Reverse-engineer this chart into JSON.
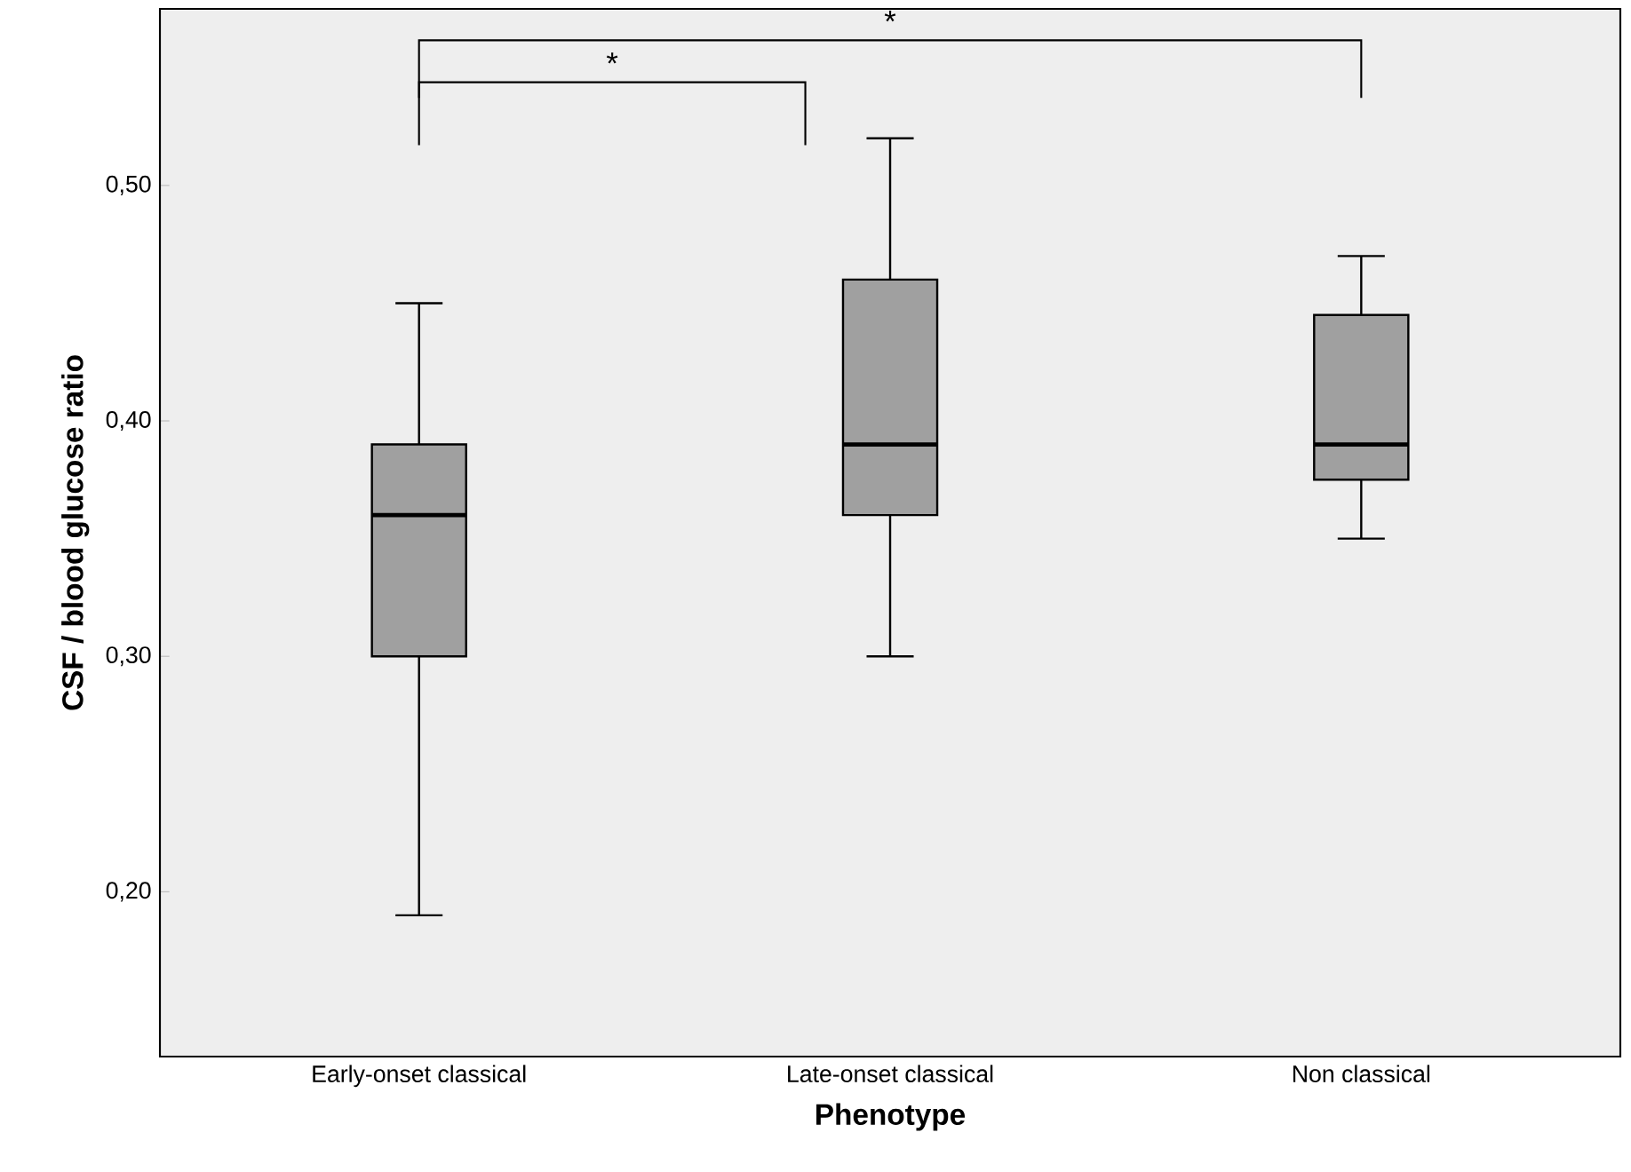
{
  "chart_data": {
    "type": "box",
    "xlabel": "Phenotype",
    "ylabel": "CSF / blood glucose ratio",
    "categories": [
      "Early-onset classical",
      "Late-onset classical",
      "Non classical"
    ],
    "color": "#a0a0a0",
    "boxes": [
      {
        "low": 0.19,
        "q1": 0.3,
        "median": 0.36,
        "q3": 0.39,
        "high": 0.45
      },
      {
        "low": 0.3,
        "q1": 0.36,
        "median": 0.39,
        "q3": 0.46,
        "high": 0.52
      },
      {
        "low": 0.35,
        "q1": 0.375,
        "median": 0.39,
        "q3": 0.445,
        "high": 0.47
      }
    ],
    "ylim": [
      0.13,
      0.575
    ],
    "yticks": [
      {
        "value": 0.2,
        "label": "0,20"
      },
      {
        "value": 0.3,
        "label": "0,30"
      },
      {
        "value": 0.4,
        "label": "0,40"
      },
      {
        "value": 0.5,
        "label": "0,50"
      }
    ],
    "annotations": [
      "*",
      "*"
    ],
    "grid": false
  }
}
